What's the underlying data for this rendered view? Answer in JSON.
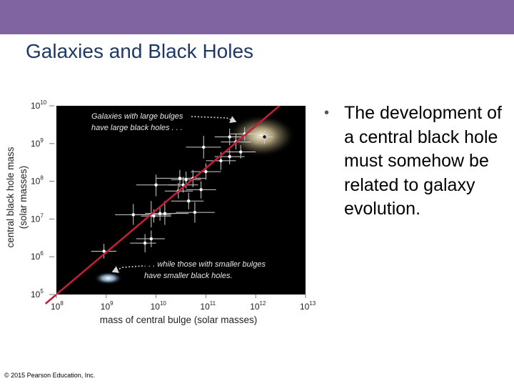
{
  "slide": {
    "title": "Galaxies and Black Holes",
    "bullets": [
      "The development of a central black hole must somehow be related to galaxy evolution."
    ],
    "copyright": "© 2015 Pearson Education, Inc."
  },
  "colors": {
    "header_bar": "#8064a2",
    "title": "#1f3864",
    "plot_background": "#000000",
    "fit_line": "#c21e3a",
    "points": "#ffffff"
  },
  "chart_data": {
    "type": "scatter",
    "xlabel": "mass of central bulge (solar masses)",
    "ylabel": "central black hole mass",
    "ylabel_sub": "(solar masses)",
    "x_scale": "log",
    "y_scale": "log",
    "xlim": [
      100000000,
      10000000000000
    ],
    "ylim": [
      100000,
      10000000000
    ],
    "x_ticks": [
      {
        "value": 100000000,
        "base": "10",
        "exp": "8"
      },
      {
        "value": 1000000000,
        "base": "10",
        "exp": "9"
      },
      {
        "value": 10000000000,
        "base": "10",
        "exp": "10"
      },
      {
        "value": 100000000000,
        "base": "10",
        "exp": "11"
      },
      {
        "value": 1000000000000,
        "base": "10",
        "exp": "12"
      },
      {
        "value": 10000000000000,
        "base": "10",
        "exp": "13"
      }
    ],
    "y_ticks": [
      {
        "value": 100000,
        "base": "10",
        "exp": "5"
      },
      {
        "value": 1000000,
        "base": "10",
        "exp": "6"
      },
      {
        "value": 10000000,
        "base": "10",
        "exp": "7"
      },
      {
        "value": 100000000,
        "base": "10",
        "exp": "8"
      },
      {
        "value": 1000000000,
        "base": "10",
        "exp": "9"
      },
      {
        "value": 10000000000,
        "base": "10",
        "exp": "10"
      }
    ],
    "fit_line": {
      "x": [
        100000000,
        3000000000000
      ],
      "y": [
        100000,
        10000000000
      ]
    },
    "points": [
      {
        "x": 900000000,
        "y": 1400000,
        "x_err": [
          500000000,
          1600000000
        ],
        "y_err": [
          900000,
          2200000
        ]
      },
      {
        "x": 3500000000,
        "y": 13000000,
        "x_err": [
          1500000000,
          9000000000
        ],
        "y_err": [
          7000000,
          25000000
        ]
      },
      {
        "x": 6000000000,
        "y": 2300000,
        "x_err": [
          3000000000,
          10000000000
        ],
        "y_err": [
          1300000,
          4000000
        ]
      },
      {
        "x": 8000000000,
        "y": 3000000,
        "x_err": [
          4000000000,
          15000000000
        ],
        "y_err": [
          1800000,
          5000000
        ]
      },
      {
        "x": 8000000000,
        "y": 13000000,
        "x_err": [
          3000000000,
          20000000000
        ],
        "y_err": [
          6000000,
          30000000
        ]
      },
      {
        "x": 9000000000,
        "y": 12000000,
        "x_err": [
          5000000000,
          20000000000
        ],
        "y_err": [
          8000000,
          18000000
        ]
      },
      {
        "x": 10000000000,
        "y": 80000000,
        "x_err": [
          4000000000,
          25000000000
        ],
        "y_err": [
          40000000,
          150000000
        ]
      },
      {
        "x": 12000000000,
        "y": 14000000,
        "x_err": [
          7000000000,
          25000000000
        ],
        "y_err": [
          9000000,
          22000000
        ]
      },
      {
        "x": 15000000000,
        "y": 14000000,
        "x_err": [
          6000000000,
          45000000000
        ],
        "y_err": [
          7000000,
          30000000
        ]
      },
      {
        "x": 28000000000,
        "y": 55000000,
        "x_err": [
          15000000000,
          55000000000
        ],
        "y_err": [
          35000000,
          90000000
        ]
      },
      {
        "x": 30000000000,
        "y": 120000000,
        "x_err": [
          10000000000,
          80000000000
        ],
        "y_err": [
          70000000,
          200000000
        ]
      },
      {
        "x": 35000000000,
        "y": 80000000,
        "x_err": [
          18000000000,
          70000000000
        ],
        "y_err": [
          50000000,
          130000000
        ]
      },
      {
        "x": 40000000000,
        "y": 110000000,
        "x_err": [
          20000000000,
          80000000000
        ],
        "y_err": [
          65000000,
          180000000
        ]
      },
      {
        "x": 45000000000,
        "y": 30000000,
        "x_err": [
          20000000000,
          90000000000
        ],
        "y_err": [
          18000000,
          50000000
        ]
      },
      {
        "x": 55000000000,
        "y": 120000000,
        "x_err": [
          30000000000,
          100000000000
        ],
        "y_err": [
          70000000,
          200000000
        ]
      },
      {
        "x": 60000000000,
        "y": 15000000,
        "x_err": [
          25000000000,
          150000000000
        ],
        "y_err": [
          8000000,
          28000000
        ]
      },
      {
        "x": 80000000000,
        "y": 60000000,
        "x_err": [
          40000000000,
          160000000000
        ],
        "y_err": [
          35000000,
          100000000
        ]
      },
      {
        "x": 90000000000,
        "y": 800000000,
        "x_err": [
          40000000000,
          200000000000
        ],
        "y_err": [
          400000000,
          1600000000
        ]
      },
      {
        "x": 100000000000,
        "y": 180000000,
        "x_err": [
          50000000000,
          200000000000
        ],
        "y_err": [
          110000000,
          300000000
        ]
      },
      {
        "x": 200000000000,
        "y": 350000000,
        "x_err": [
          100000000000,
          400000000000
        ],
        "y_err": [
          200000000,
          600000000
        ]
      },
      {
        "x": 300000000000,
        "y": 450000000,
        "x_err": [
          150000000000,
          600000000000
        ],
        "y_err": [
          280000000,
          700000000
        ]
      },
      {
        "x": 300000000000,
        "y": 1500000000,
        "x_err": [
          150000000000,
          600000000000
        ],
        "y_err": [
          900000000,
          2500000000
        ]
      },
      {
        "x": 400000000000,
        "y": 1100000000,
        "x_err": [
          200000000000,
          800000000000
        ],
        "y_err": [
          700000000,
          1800000000
        ]
      },
      {
        "x": 500000000000,
        "y": 600000000,
        "x_err": [
          250000000000,
          1000000000000
        ],
        "y_err": [
          400000000,
          900000000
        ]
      },
      {
        "x": 600000000000,
        "y": 1800000000,
        "x_err": [
          300000000000,
          1200000000000
        ],
        "y_err": [
          1200000000,
          2700000000
        ]
      },
      {
        "x": 1500000000000,
        "y": 1500000000,
        "x_err": [
          1000000000000,
          2200000000000
        ],
        "y_err": [
          1000000000,
          2200000000
        ]
      }
    ],
    "galaxy_glows": [
      {
        "x": 1300000000000,
        "y": 1600000000,
        "size": "large"
      },
      {
        "x": 1100000000,
        "y": 270000,
        "size": "small"
      }
    ],
    "annotations": [
      {
        "lines": [
          "Galaxies with large bulges",
          "have large black holes . . ."
        ],
        "points_to": "upper-right"
      },
      {
        "lines": [
          ". . . while those with smaller bulges",
          "have smaller black holes."
        ],
        "points_to": "lower-left"
      }
    ]
  }
}
